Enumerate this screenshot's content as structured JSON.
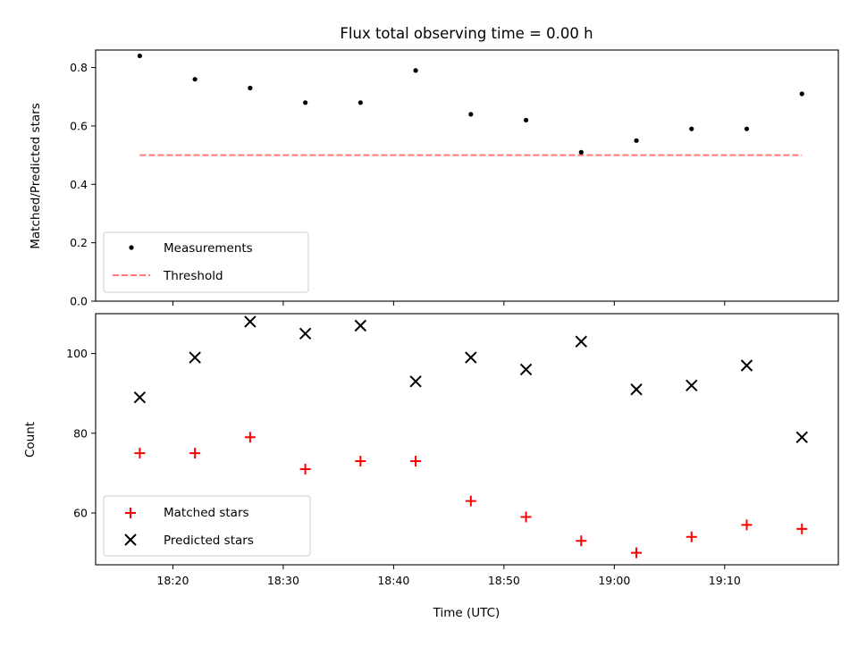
{
  "chart_data": [
    {
      "type": "scatter",
      "title": "Flux total observing time = 0.00 h",
      "xlabel": "",
      "ylabel": "Matched/Predicted stars",
      "ylim": [
        0,
        0.86
      ],
      "yticks": [
        "0.0",
        "0.2",
        "0.4",
        "0.6",
        "0.8"
      ],
      "ytick_values": [
        0.0,
        0.2,
        0.4,
        0.6,
        0.8
      ],
      "grid": false,
      "legend_position": "bottom-left",
      "series": [
        {
          "name": "Measurements",
          "marker": "dot",
          "color": "#000000",
          "x": [
            "18:17",
            "18:22",
            "18:27",
            "18:32",
            "18:37",
            "18:42",
            "18:47",
            "18:52",
            "18:57",
            "19:02",
            "19:07",
            "19:12",
            "19:17"
          ],
          "y": [
            0.84,
            0.76,
            0.73,
            0.68,
            0.68,
            0.79,
            0.64,
            0.62,
            0.51,
            0.55,
            0.59,
            0.59,
            0.71
          ]
        },
        {
          "name": "Threshold",
          "marker": "dashed-line",
          "color": "#ff7777",
          "x": [
            "18:17",
            "19:17"
          ],
          "y": [
            0.5,
            0.5
          ]
        }
      ]
    },
    {
      "type": "scatter",
      "title": "",
      "xlabel": "Time (UTC)",
      "ylabel": "Count",
      "ylim": [
        47,
        110
      ],
      "yticks": [
        "60",
        "80",
        "100"
      ],
      "ytick_values": [
        60,
        80,
        100
      ],
      "xticks": [
        "18:20",
        "18:30",
        "18:40",
        "18:50",
        "19:00",
        "19:10"
      ],
      "grid": false,
      "legend_position": "bottom-left",
      "series": [
        {
          "name": "Matched stars",
          "marker": "plus",
          "color": "#ff0000",
          "x": [
            "18:17",
            "18:22",
            "18:27",
            "18:32",
            "18:37",
            "18:42",
            "18:47",
            "18:52",
            "18:57",
            "19:02",
            "19:07",
            "19:12",
            "19:17"
          ],
          "y": [
            75,
            75,
            79,
            71,
            73,
            73,
            63,
            59,
            53,
            50,
            54,
            57,
            56
          ]
        },
        {
          "name": "Predicted stars",
          "marker": "x",
          "color": "#000000",
          "x": [
            "18:17",
            "18:22",
            "18:27",
            "18:32",
            "18:37",
            "18:42",
            "18:47",
            "18:52",
            "18:57",
            "19:02",
            "19:07",
            "19:12",
            "19:17"
          ],
          "y": [
            89,
            99,
            108,
            105,
            107,
            93,
            99,
            96,
            103,
            91,
            92,
            97,
            79
          ]
        }
      ]
    }
  ]
}
